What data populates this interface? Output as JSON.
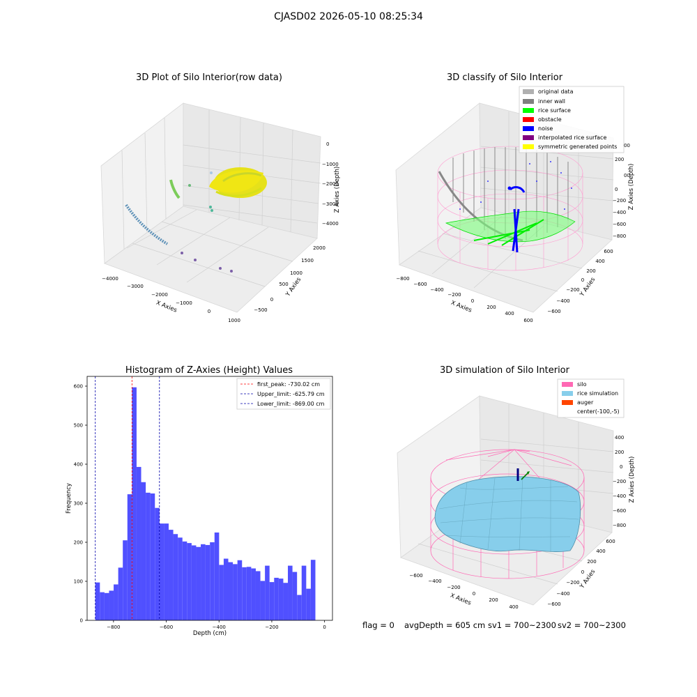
{
  "suptitle": "CJASD02 2026-05-10 08:25:34",
  "footer": {
    "flag": "flag = 0",
    "avg_depth": "avgDepth = 605 cm",
    "sv1": "sv1 = 700~2300",
    "sv2": "sv2 = 700~2300"
  },
  "colors": {
    "hist_bar": "#5050ff",
    "peak_line": "#ff0000",
    "limit_line": "#0000aa",
    "silo": "#ff69b4",
    "rice_sim": "#87ceeb",
    "auger": "#ff4500",
    "original": "#b0b0b0",
    "inner_wall": "#808080",
    "rice_surface": "#00ff00",
    "obstacle": "#ff0000",
    "noise": "#0000ff",
    "interp": "#800080",
    "symmetric": "#ffff00"
  },
  "chart_data": [
    {
      "type": "scatter",
      "title": "3D Plot of Silo Interior(row data)",
      "xlabel": "X Axies",
      "ylabel": "Y Axies",
      "zlabel": "Z Axies (Depth)",
      "x_ticks": [
        "−4000",
        "−3000",
        "−2000",
        "−1000",
        "0",
        "1000"
      ],
      "y_ticks": [
        "−500",
        "0",
        "500",
        "1000",
        "1500",
        "2000"
      ],
      "z_ticks": [
        "0",
        "−1000",
        "−2000",
        "−3000",
        "−4000"
      ]
    },
    {
      "type": "scatter",
      "title": "3D classify of Silo Interior",
      "xlabel": "X Axies",
      "ylabel": "Y Axies",
      "zlabel": "Z Axies (Depth)",
      "x_ticks": [
        "−800",
        "−600",
        "−400",
        "−200",
        "0",
        "200",
        "400",
        "600"
      ],
      "y_ticks": [
        "−600",
        "−400",
        "−200",
        "0",
        "200",
        "400",
        "600"
      ],
      "z_ticks": [
        "200",
        "0",
        "−200",
        "−400",
        "−600",
        "−800"
      ],
      "z_ticks_partial": [
        "00",
        "00"
      ],
      "legend": [
        "original data",
        "inner wall",
        "rice surface",
        "obstacle",
        "noise",
        "interpolated rice surface",
        "symmetric generated points"
      ],
      "legend_placement": "top-right"
    },
    {
      "type": "bar",
      "title": "Histogram of Z-Axies (Height) Values",
      "xlabel": "Depth (cm)",
      "ylabel": "Frequency",
      "xlim": [
        -900,
        30
      ],
      "ylim": [
        0,
        625
      ],
      "x_ticks": [
        -800,
        -600,
        -400,
        -200,
        0
      ],
      "x_tick_labels": [
        "−800",
        "−600",
        "−400",
        "−200",
        "0"
      ],
      "y_ticks": [
        0,
        100,
        200,
        300,
        400,
        500,
        600
      ],
      "bin_start": -869,
      "bin_width": 17.38,
      "values": [
        97,
        72,
        70,
        76,
        92,
        135,
        205,
        323,
        597,
        393,
        354,
        327,
        325,
        288,
        248,
        248,
        232,
        221,
        212,
        202,
        198,
        192,
        188,
        195,
        193,
        200,
        225,
        142,
        158,
        149,
        144,
        154,
        136,
        137,
        133,
        126,
        101,
        140,
        98,
        109,
        107,
        96,
        140,
        124,
        65,
        140,
        81,
        155
      ],
      "lines": [
        {
          "label": "first_peak: -730.02 cm",
          "value": -730.02,
          "style": "peak"
        },
        {
          "label": "Upper_limit: -625.79 cm",
          "value": -625.79,
          "style": "limit"
        },
        {
          "label": "Lower_limit: -869.00 cm",
          "value": -869.0,
          "style": "limit"
        }
      ],
      "legend_placement": "top-right"
    },
    {
      "type": "scatter",
      "title": "3D simulation of Silo Interior",
      "xlabel": "X Axies",
      "ylabel": "Y Axies",
      "zlabel": "Z Axies (Depth)",
      "x_ticks": [
        "−600",
        "−400",
        "−200",
        "0",
        "200",
        "400"
      ],
      "y_ticks": [
        "−600",
        "−400",
        "−200",
        "0",
        "200",
        "400",
        "600"
      ],
      "z_ticks": [
        "400",
        "200",
        "0",
        "−200",
        "−400",
        "−600",
        "−800"
      ],
      "legend": [
        "silo",
        "rice simulation",
        "auger",
        "center(-100,-5)"
      ],
      "legend_placement": "top-right"
    }
  ]
}
